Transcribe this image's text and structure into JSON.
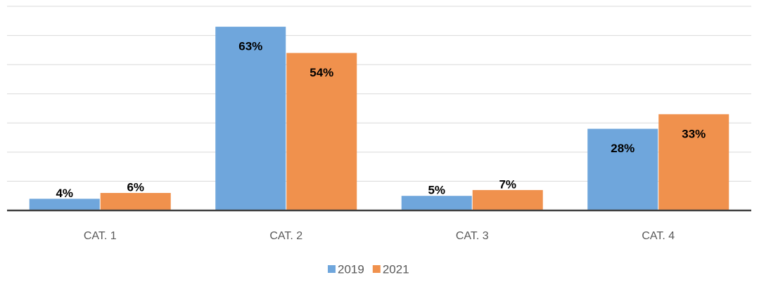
{
  "chart_data": {
    "type": "bar",
    "categories": [
      "CAT. 1",
      "CAT. 2",
      "CAT. 3",
      "CAT. 4"
    ],
    "series": [
      {
        "name": "2019",
        "color": "#6fa6dc",
        "values": [
          4,
          63,
          5,
          28
        ],
        "value_labels": [
          "4%",
          "63%",
          "5%",
          "28%"
        ]
      },
      {
        "name": "2021",
        "color": "#f0914d",
        "values": [
          6,
          54,
          7,
          33
        ],
        "value_labels": [
          "6%",
          "54%",
          "7%",
          "33%"
        ]
      }
    ],
    "ylim": [
      0,
      70
    ],
    "yticks": [
      0,
      10,
      20,
      30,
      40,
      50,
      60,
      70
    ],
    "grid": true,
    "legend": "bottom"
  }
}
